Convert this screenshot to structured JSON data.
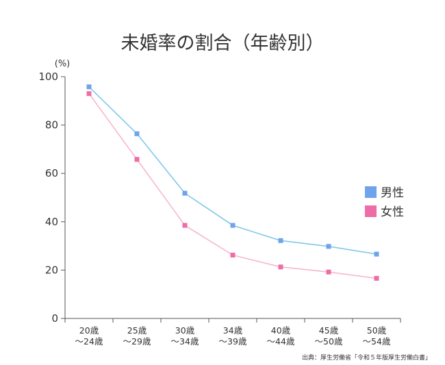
{
  "chart_data": {
    "type": "line",
    "title": "未婚率の割合（年齢別）",
    "yunit": "(%)",
    "ylim": [
      0,
      100
    ],
    "yticks": [
      0,
      20,
      40,
      60,
      80,
      100
    ],
    "categories": [
      [
        "20歳",
        "〜24歳"
      ],
      [
        "25歳",
        "〜29歳"
      ],
      [
        "30歳",
        "〜34歳"
      ],
      [
        "34歳",
        "〜39歳"
      ],
      [
        "40歳",
        "〜44歳"
      ],
      [
        "45歳",
        "〜50歳"
      ],
      [
        "50歳",
        "〜54歳"
      ]
    ],
    "series": [
      {
        "name": "男性",
        "line_color": "#7fc8ea",
        "marker_color": "#6fa3ec",
        "values": [
          95.8,
          76.4,
          51.8,
          38.5,
          32.2,
          29.8,
          26.6
        ]
      },
      {
        "name": "女性",
        "line_color": "#f7b6cd",
        "marker_color": "#ee6da6",
        "values": [
          93.0,
          65.8,
          38.5,
          26.2,
          21.3,
          19.2,
          16.6
        ]
      }
    ],
    "legend_position": "right",
    "grid": false,
    "source": "出典：厚生労働省「令和５年版厚生労働白書」"
  }
}
